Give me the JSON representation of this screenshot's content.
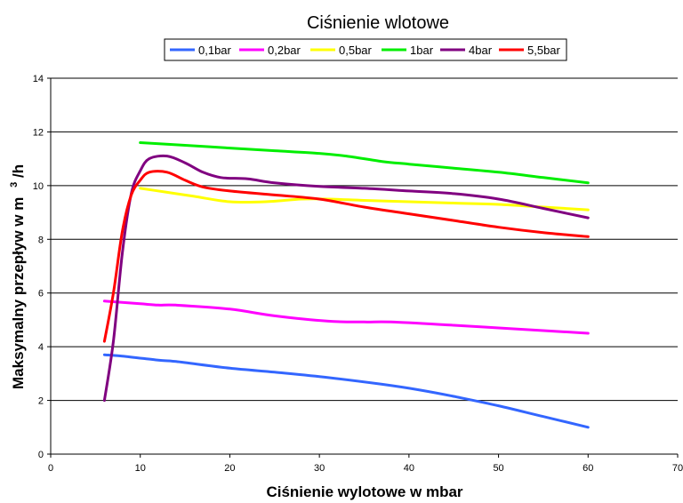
{
  "chart_data": {
    "type": "line",
    "title": "Ciśnienie wlotowe",
    "xlabel": "Ciśnienie wylotowe w mbar",
    "ylabel_main": "Maksymalny przepływ w m",
    "ylabel_sup": "3",
    "ylabel_suffix": "/h",
    "xlim": [
      0,
      70
    ],
    "ylim": [
      0,
      14
    ],
    "x_ticks": [
      0,
      10,
      20,
      30,
      40,
      50,
      60,
      70
    ],
    "y_ticks": [
      0,
      2,
      4,
      6,
      8,
      10,
      12,
      14
    ],
    "grid": "horizontal",
    "legend_position": "top",
    "series": [
      {
        "name": "0,1bar",
        "color": "#3366ff",
        "x": [
          6,
          8,
          12,
          14,
          20,
          25,
          31,
          37,
          41,
          45,
          50,
          55,
          60
        ],
        "y": [
          3.7,
          3.65,
          3.5,
          3.45,
          3.2,
          3.05,
          2.85,
          2.6,
          2.4,
          2.15,
          1.8,
          1.4,
          1.0
        ]
      },
      {
        "name": "0,2bar",
        "color": "#ff00ff",
        "x": [
          6,
          10,
          12,
          14,
          20,
          25,
          31,
          35,
          38,
          45,
          50,
          55,
          60
        ],
        "y": [
          5.7,
          5.6,
          5.55,
          5.55,
          5.4,
          5.15,
          4.95,
          4.92,
          4.92,
          4.8,
          4.7,
          4.6,
          4.5
        ]
      },
      {
        "name": "0,5bar",
        "color": "#ffff00",
        "x": [
          10,
          13,
          16,
          20,
          24,
          28,
          31,
          35,
          40,
          45,
          50,
          55,
          60
        ],
        "y": [
          9.9,
          9.75,
          9.6,
          9.4,
          9.4,
          9.5,
          9.5,
          9.45,
          9.4,
          9.35,
          9.3,
          9.2,
          9.1
        ]
      },
      {
        "name": "1bar",
        "color": "#00ee00",
        "x": [
          10,
          15,
          20,
          25,
          30,
          33,
          37,
          40,
          45,
          50,
          55,
          60
        ],
        "y": [
          11.6,
          11.5,
          11.4,
          11.3,
          11.2,
          11.1,
          10.9,
          10.8,
          10.65,
          10.5,
          10.3,
          10.1
        ]
      },
      {
        "name": "4bar",
        "color": "#800080",
        "x": [
          6,
          7,
          8,
          9,
          10,
          11,
          13,
          15,
          17,
          19,
          22,
          25,
          30,
          35,
          40,
          45,
          50,
          55,
          60
        ],
        "y": [
          2.0,
          4.2,
          7.5,
          9.7,
          10.55,
          11.0,
          11.1,
          10.85,
          10.5,
          10.3,
          10.25,
          10.1,
          9.97,
          9.9,
          9.8,
          9.7,
          9.5,
          9.15,
          8.8
        ]
      },
      {
        "name": "5,5bar",
        "color": "#ff0000",
        "x": [
          6,
          7,
          8,
          9,
          10,
          11,
          13,
          15,
          17,
          20,
          25,
          30,
          35,
          40,
          45,
          50,
          55,
          60
        ],
        "y": [
          4.2,
          6.0,
          8.3,
          9.65,
          10.2,
          10.5,
          10.5,
          10.2,
          9.95,
          9.8,
          9.65,
          9.5,
          9.2,
          8.95,
          8.7,
          8.45,
          8.25,
          8.1
        ]
      }
    ]
  }
}
